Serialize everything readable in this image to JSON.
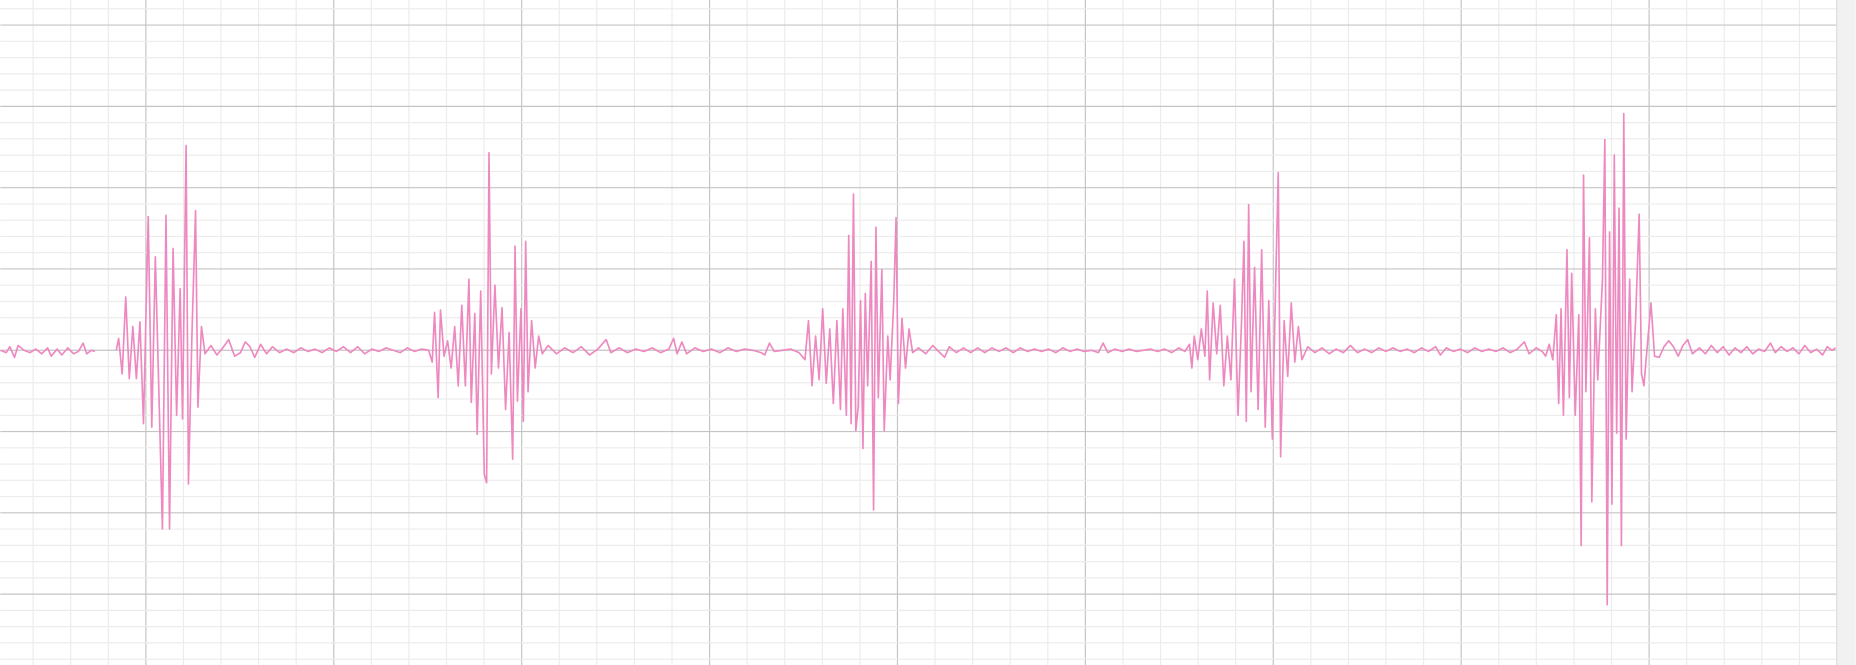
{
  "chart_data": {
    "type": "line",
    "color": "#ee88c0",
    "grid": true,
    "xlim": [
      0,
      1552
    ],
    "ylim": [
      -266,
      296
    ],
    "x": [
      0,
      5,
      8,
      12,
      15,
      20,
      25,
      30,
      35,
      40,
      43,
      48,
      52,
      57,
      62,
      66,
      70,
      73,
      77,
      80,
      89,
      98,
      100,
      103,
      106,
      109,
      112,
      115,
      118,
      121,
      125,
      128,
      131,
      134,
      137,
      140,
      143,
      146,
      149,
      152,
      154,
      157,
      159,
      162,
      165,
      167,
      170,
      173,
      178,
      183,
      188,
      193,
      198,
      203,
      207,
      211,
      215,
      220,
      225,
      230,
      236,
      242,
      248,
      254,
      260,
      266,
      272,
      278,
      284,
      290,
      296,
      302,
      308,
      314,
      320,
      326,
      332,
      338,
      344,
      350,
      356,
      362,
      365,
      367,
      370,
      372,
      375,
      378,
      381,
      384,
      387,
      390,
      393,
      396,
      398,
      401,
      403,
      406,
      409,
      411,
      413,
      415,
      418,
      421,
      424,
      427,
      430,
      433,
      435,
      437,
      440,
      442,
      444,
      446,
      449,
      452,
      455,
      458,
      463,
      470,
      477,
      484,
      491,
      498,
      505,
      512,
      516,
      523,
      530,
      537,
      544,
      551,
      558,
      565,
      569,
      572,
      576,
      580,
      587,
      594,
      601,
      608,
      615,
      622,
      629,
      636,
      643,
      646,
      650,
      654,
      661,
      668,
      675,
      680,
      683,
      686,
      689,
      692,
      695,
      698,
      701,
      704,
      707,
      710,
      712,
      715,
      717,
      719,
      721,
      723,
      725,
      727,
      729,
      731,
      733,
      736,
      738,
      740,
      742,
      745,
      747,
      750,
      752,
      755,
      757,
      759,
      762,
      765,
      768,
      771,
      776,
      782,
      788,
      794,
      798,
      802,
      808,
      814,
      820,
      826,
      832,
      838,
      844,
      850,
      856,
      862,
      868,
      874,
      880,
      886,
      892,
      898,
      904,
      910,
      916,
      922,
      928,
      932,
      936,
      942,
      948,
      954,
      960,
      966,
      972,
      978,
      984,
      990,
      996,
      1001,
      1005,
      1007,
      1009,
      1012,
      1015,
      1018,
      1020,
      1022,
      1025,
      1028,
      1031,
      1034,
      1037,
      1040,
      1043,
      1046,
      1049,
      1051,
      1053,
      1055,
      1057,
      1060,
      1063,
      1066,
      1069,
      1072,
      1075,
      1078,
      1080,
      1082,
      1085,
      1088,
      1091,
      1094,
      1097,
      1100,
      1105,
      1111,
      1117,
      1123,
      1129,
      1135,
      1141,
      1147,
      1153,
      1159,
      1165,
      1171,
      1177,
      1183,
      1189,
      1195,
      1201,
      1207,
      1213,
      1217,
      1222,
      1228,
      1234,
      1240,
      1246,
      1252,
      1258,
      1264,
      1270,
      1276,
      1282,
      1288,
      1292,
      1298,
      1303,
      1306,
      1309,
      1312,
      1315,
      1317,
      1319,
      1321,
      1324,
      1326,
      1328,
      1331,
      1334,
      1336,
      1338,
      1340,
      1343,
      1345,
      1348,
      1350,
      1354,
      1356,
      1358,
      1360,
      1362,
      1364,
      1366,
      1368,
      1370,
      1372,
      1374,
      1377,
      1379,
      1382,
      1385,
      1387,
      1389,
      1392,
      1395,
      1398,
      1402,
      1406,
      1410,
      1414,
      1418,
      1422,
      1426,
      1430,
      1436,
      1441,
      1446,
      1451,
      1456,
      1461,
      1466,
      1471,
      1476,
      1481,
      1486,
      1491,
      1496,
      1500,
      1505,
      1510,
      1515,
      1520,
      1525,
      1530,
      1535,
      1540,
      1544,
      1548,
      1551
    ],
    "values": [
      0,
      -2,
      3,
      -6,
      4,
      0,
      -2,
      1,
      -3,
      2,
      -5,
      1,
      -4,
      2,
      -3,
      -1,
      6,
      -3,
      0,
      -1,
      null,
      0,
      10,
      -20,
      45,
      -24,
      20,
      -24,
      24,
      -62,
      113,
      -65,
      79,
      -35,
      -151,
      114,
      -151,
      86,
      -55,
      52,
      -58,
      173,
      -113,
      15,
      118,
      -48,
      20,
      -3,
      4,
      -4,
      2,
      9,
      -5,
      -2,
      7,
      3,
      -6,
      5,
      -3,
      3,
      -2,
      1,
      -2,
      2,
      -1,
      1,
      -2,
      2,
      -1,
      3,
      -2,
      3,
      -3,
      1,
      -1,
      2,
      0,
      -2,
      2,
      -1,
      1,
      0,
      -10,
      32,
      -40,
      34,
      -5,
      8,
      -15,
      20,
      -30,
      38,
      -30,
      60,
      -44,
      31,
      -71,
      50,
      -105,
      -112,
      167,
      -20,
      55,
      -15,
      36,
      -50,
      15,
      -92,
      88,
      -43,
      35,
      -60,
      92,
      -35,
      25,
      -15,
      12,
      -3,
      4,
      -3,
      2,
      -2,
      3,
      -4,
      1,
      9,
      -2,
      2,
      -2,
      1,
      -1,
      2,
      -2,
      1,
      10,
      -3,
      7,
      -3,
      2,
      -1,
      1,
      -2,
      2,
      -1,
      1,
      0,
      -2,
      -4,
      6,
      -1,
      0,
      1,
      -2,
      -8,
      25,
      -30,
      12,
      -25,
      35,
      -28,
      18,
      -45,
      25,
      -50,
      35,
      -55,
      97,
      -62,
      132,
      -68,
      -48,
      42,
      -83,
      48,
      -30,
      75,
      -135,
      104,
      -40,
      68,
      -68,
      12,
      -25,
      40,
      112,
      -45,
      27,
      -15,
      18,
      -2,
      2,
      -3,
      4,
      -2,
      -6,
      3,
      -2,
      2,
      -2,
      2,
      -2,
      2,
      -1,
      2,
      -2,
      2,
      -1,
      1,
      -1,
      1,
      -2,
      2,
      -1,
      1,
      -1,
      0,
      -2,
      6,
      -2,
      1,
      -1,
      1,
      -1,
      0,
      1,
      -1,
      1,
      -2,
      2,
      -1,
      5,
      -15,
      12,
      -8,
      18,
      -5,
      50,
      -25,
      40,
      -3,
      38,
      -30,
      12,
      -25,
      60,
      -55,
      25,
      92,
      -60,
      123,
      -35,
      70,
      -50,
      85,
      -65,
      42,
      -75,
      65,
      150,
      -90,
      25,
      -22,
      40,
      -10,
      20,
      -8,
      3,
      -2,
      2,
      -3,
      1,
      -2,
      4,
      -2,
      1,
      -2,
      2,
      -1,
      2,
      -1,
      1,
      -2,
      2,
      -1,
      3,
      -4,
      2,
      -1,
      1,
      -2,
      2,
      -1,
      1,
      -1,
      2,
      -2,
      1,
      7,
      -3,
      2,
      -1,
      -5,
      5,
      -8,
      30,
      -45,
      35,
      -55,
      85,
      -40,
      65,
      -55,
      30,
      -165,
      148,
      -35,
      95,
      -128,
      35,
      -25,
      60,
      178,
      -215,
      100,
      -130,
      165,
      -70,
      120,
      -165,
      200,
      -75,
      60,
      -35,
      25,
      115,
      -20,
      -30,
      5,
      40,
      -5,
      -6,
      3,
      8,
      3,
      -5,
      4,
      9,
      -3,
      2,
      -3,
      4,
      -2,
      3,
      -4,
      2,
      -2,
      3,
      -3,
      1,
      -1,
      6,
      -2,
      3,
      -1,
      2,
      -3,
      4,
      -2,
      1,
      -4,
      3,
      0,
      2
    ]
  }
}
